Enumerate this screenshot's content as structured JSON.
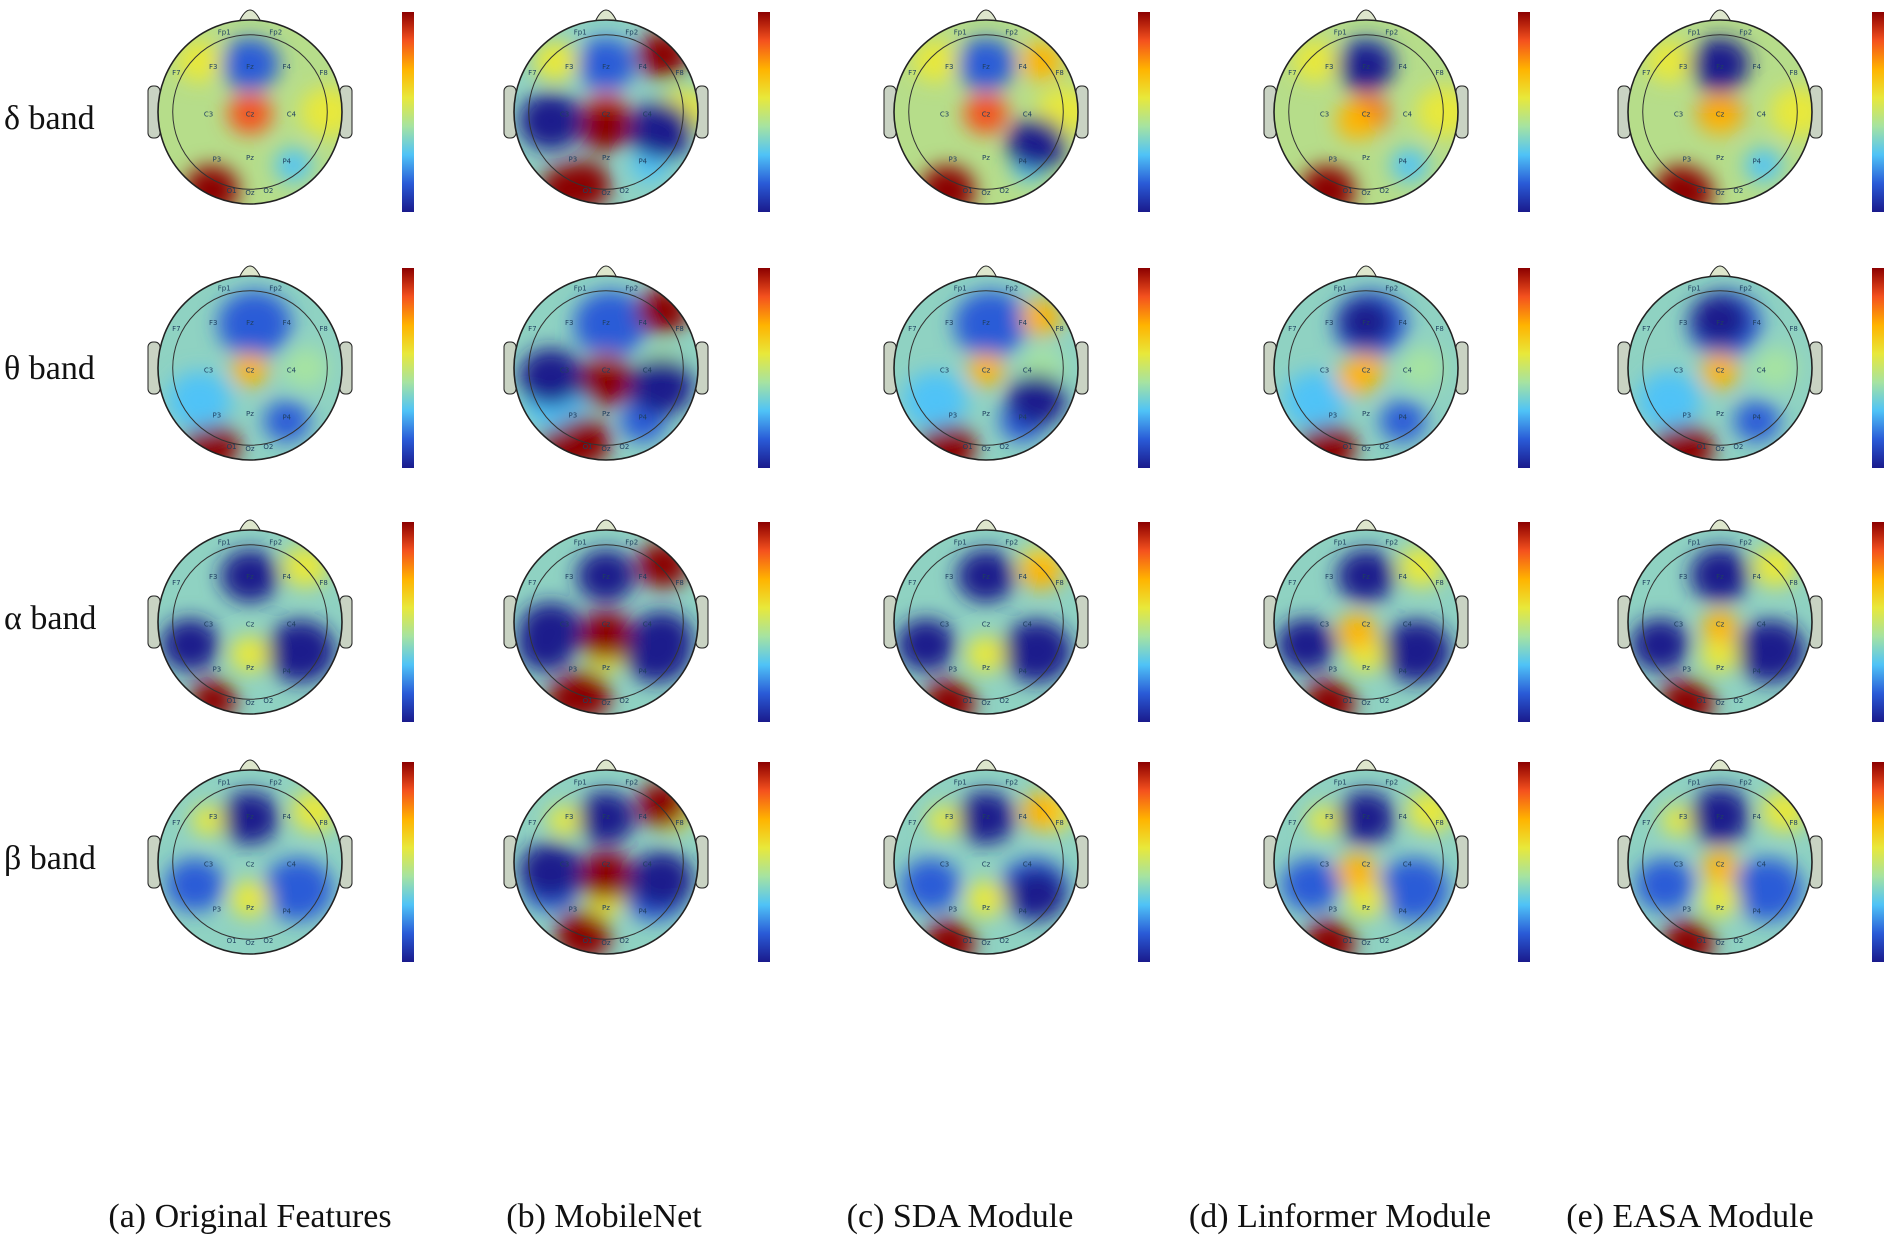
{
  "rows": [
    {
      "label": "δ  band"
    },
    {
      "label": "θ  band"
    },
    {
      "label": "α  band"
    },
    {
      "label": "β  band"
    }
  ],
  "columns": [
    {
      "label": "(a) Original Features"
    },
    {
      "label": "(b) MobileNet"
    },
    {
      "label": "(c) SDA Module"
    },
    {
      "label": "(d) Linformer Module"
    },
    {
      "label": "(e) EASA Module"
    }
  ],
  "electrodes": [
    "Fp1",
    "Fp2",
    "F7",
    "F3",
    "Fz",
    "F4",
    "F8",
    "C3",
    "Cz",
    "C4",
    "P3",
    "Pz",
    "P4",
    "O1",
    "Oz",
    "O2"
  ],
  "colormap": [
    "#1a1a8c",
    "#2a5bd7",
    "#4fc3f7",
    "#a6e3a1",
    "#e8e83a",
    "#ffb300",
    "#f4511e",
    "#8b0000"
  ]
}
